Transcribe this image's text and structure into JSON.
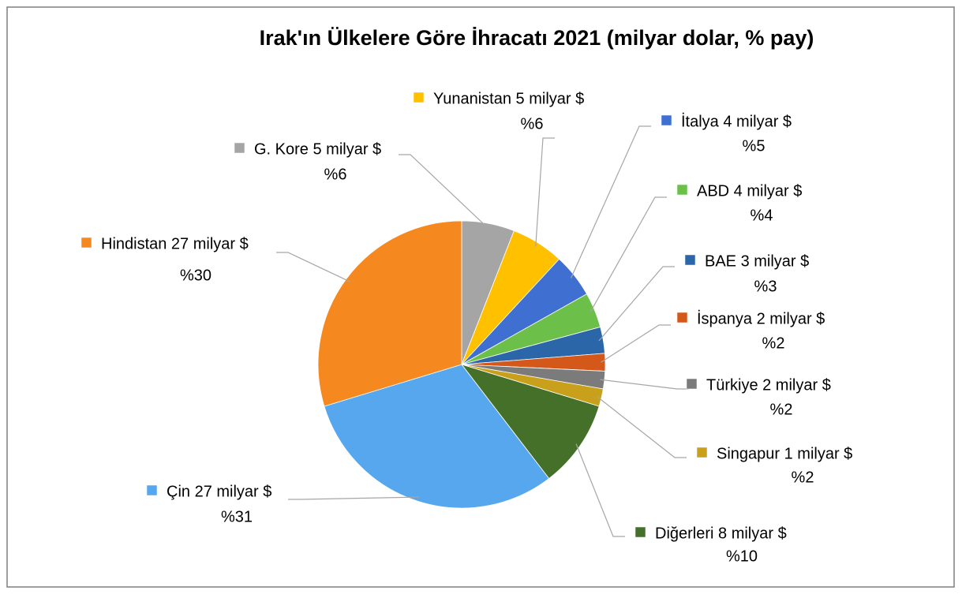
{
  "chart_data": {
    "type": "pie",
    "title": "Irak'ın Ülkelere Göre İhracatı 2021 (milyar dolar, % pay)",
    "categories": [
      "G. Kore 5 milyar $",
      "Yunanistan 5 milyar $",
      "İtalya 4 milyar $",
      "ABD 4 milyar $",
      "BAE 3 milyar $",
      "İspanya 2 milyar $",
      "Türkiye 2 milyar $",
      "Singapur 1 milyar $",
      "Diğerleri 8 milyar $",
      "Çin 27 milyar $",
      "Hindistan 27 milyar $"
    ],
    "values": [
      6,
      6,
      5,
      4,
      3,
      2,
      2,
      2,
      10,
      31,
      30
    ],
    "value_labels": [
      "%6",
      "%6",
      "%5",
      "%4",
      "%3",
      "%2",
      "%2",
      "%2",
      "%10",
      "%31",
      "%30"
    ],
    "colors": [
      "#a5a5a5",
      "#ffc000",
      "#3f6fd0",
      "#6cc04a",
      "#2a66a8",
      "#d4581a",
      "#7b7b7b",
      "#c9a01c",
      "#44702a",
      "#56a7ee",
      "#f5891f"
    ]
  }
}
